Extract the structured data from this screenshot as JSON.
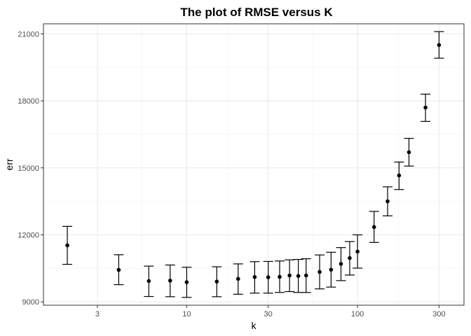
{
  "chart_data": {
    "type": "scatter",
    "title": "The plot of RMSE versus K",
    "xlabel": "k",
    "ylabel": "err",
    "x_scale": "log10",
    "xlim": [
      1.45,
      420
    ],
    "ylim": [
      8850,
      21450
    ],
    "x_ticks": [
      3,
      10,
      30,
      100,
      300
    ],
    "x_tick_labels": [
      "3",
      "10",
      "30",
      "100",
      "300"
    ],
    "y_ticks": [
      9000,
      12000,
      15000,
      18000,
      21000
    ],
    "y_tick_labels": [
      "9000",
      "12000",
      "15000",
      "18000",
      "21000"
    ],
    "grid": true,
    "legend": "none",
    "points": [
      {
        "k": 2,
        "err": 11530,
        "lower": 10680,
        "upper": 12380
      },
      {
        "k": 4,
        "err": 10430,
        "lower": 9770,
        "upper": 11110
      },
      {
        "k": 6,
        "err": 9930,
        "lower": 9240,
        "upper": 10600
      },
      {
        "k": 8,
        "err": 9950,
        "lower": 9230,
        "upper": 10650
      },
      {
        "k": 10,
        "err": 9880,
        "lower": 9200,
        "upper": 10550
      },
      {
        "k": 15,
        "err": 9910,
        "lower": 9230,
        "upper": 10570
      },
      {
        "k": 20,
        "err": 10030,
        "lower": 9340,
        "upper": 10700
      },
      {
        "k": 25,
        "err": 10110,
        "lower": 9390,
        "upper": 10800
      },
      {
        "k": 30,
        "err": 10100,
        "lower": 9390,
        "upper": 10810
      },
      {
        "k": 35,
        "err": 10120,
        "lower": 9420,
        "upper": 10830
      },
      {
        "k": 40,
        "err": 10180,
        "lower": 9460,
        "upper": 10880
      },
      {
        "k": 45,
        "err": 10160,
        "lower": 9420,
        "upper": 10900
      },
      {
        "k": 50,
        "err": 10180,
        "lower": 9420,
        "upper": 10930
      },
      {
        "k": 60,
        "err": 10340,
        "lower": 9580,
        "upper": 11100
      },
      {
        "k": 70,
        "err": 10440,
        "lower": 9660,
        "upper": 11220
      },
      {
        "k": 80,
        "err": 10700,
        "lower": 9950,
        "upper": 11430
      },
      {
        "k": 90,
        "err": 10960,
        "lower": 10200,
        "upper": 11700
      },
      {
        "k": 100,
        "err": 11250,
        "lower": 10510,
        "upper": 12000
      },
      {
        "k": 125,
        "err": 12350,
        "lower": 11660,
        "upper": 13050
      },
      {
        "k": 150,
        "err": 13500,
        "lower": 12850,
        "upper": 14150
      },
      {
        "k": 175,
        "err": 14660,
        "lower": 14030,
        "upper": 15260
      },
      {
        "k": 200,
        "err": 15700,
        "lower": 15080,
        "upper": 16320
      },
      {
        "k": 250,
        "err": 17700,
        "lower": 17080,
        "upper": 18300
      },
      {
        "k": 300,
        "err": 20500,
        "lower": 19910,
        "upper": 21100
      }
    ]
  }
}
